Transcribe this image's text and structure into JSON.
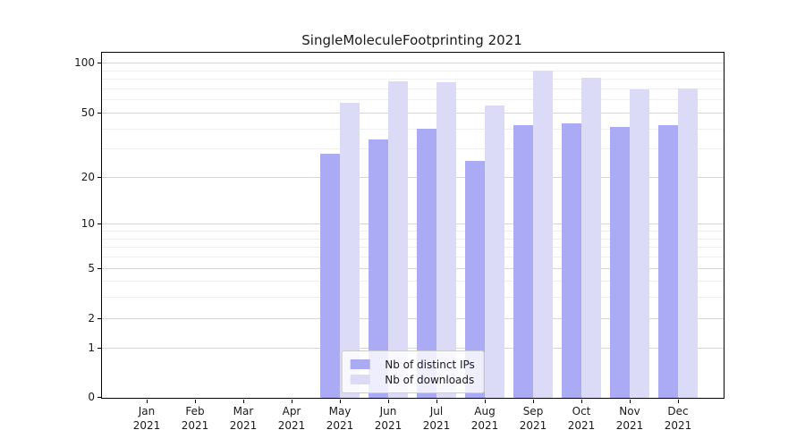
{
  "title": "SingleMoleculeFootprinting 2021",
  "colors": {
    "distinct_ips": "#aaaaf5",
    "downloads": "#dbdbf7",
    "grid_major": "#d7d7d7",
    "grid_minor": "#efefef",
    "spine": "#000000",
    "text": "#1a1a1a",
    "legend_border": "#cccccc"
  },
  "legend": {
    "items": [
      "Nb of distinct IPs",
      "Nb of downloads"
    ]
  },
  "chart_data": {
    "type": "bar",
    "title": "SingleMoleculeFootprinting 2021",
    "x_tick_months": [
      "Jan",
      "Feb",
      "Mar",
      "Apr",
      "May",
      "Jun",
      "Jul",
      "Aug",
      "Sep",
      "Oct",
      "Nov",
      "Dec"
    ],
    "x_tick_year": "2021",
    "categories": [
      "Jan 2021",
      "Feb 2021",
      "Mar 2021",
      "Apr 2021",
      "May 2021",
      "Jun 2021",
      "Jul 2021",
      "Aug 2021",
      "Sep 2021",
      "Oct 2021",
      "Nov 2021",
      "Dec 2021"
    ],
    "series": [
      {
        "name": "Nb of distinct IPs",
        "color": "#aaaaf5",
        "values": [
          0,
          0,
          0,
          0,
          28,
          34,
          40,
          25,
          42,
          43,
          41,
          42
        ]
      },
      {
        "name": "Nb of downloads",
        "color": "#dbdbf7",
        "values": [
          0,
          0,
          0,
          0,
          57,
          77,
          76,
          55,
          90,
          81,
          69,
          70
        ]
      }
    ],
    "yscale": "log1p",
    "ylim": [
      0,
      115
    ],
    "major_yticks": [
      0,
      1,
      2,
      5,
      10,
      20,
      50,
      100
    ],
    "minor_yticks": [
      3,
      4,
      6,
      7,
      8,
      9,
      30,
      40,
      60,
      70,
      80,
      90
    ],
    "grid": "on",
    "legend_position": "lower center",
    "xlabel": "",
    "ylabel": ""
  }
}
